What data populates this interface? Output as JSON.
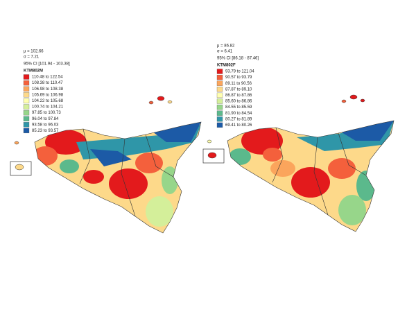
{
  "panels": [
    {
      "mean": "μ = 102.66",
      "sd": "σ =   7.21",
      "ci": "95% CI [101.94 - 103.38]",
      "legend_title": "KTM802M",
      "legend": [
        {
          "label": "110.48  to  122.54",
          "color": "#e31a1c"
        },
        {
          "label": "108.38  to  110.47",
          "color": "#f4603c"
        },
        {
          "label": "106.98  to  108.38",
          "color": "#fba55c"
        },
        {
          "label": "105.69  to  106.98",
          "color": "#fdd98a"
        },
        {
          "label": "104.22  to  105.68",
          "color": "#ffffb0"
        },
        {
          "label": "100.74  to  104.21",
          "color": "#d4ef9a"
        },
        {
          "label": "97.85  to  100.73",
          "color": "#97d68a"
        },
        {
          "label": "96.04  to  97.84",
          "color": "#5bb98c"
        },
        {
          "label": "93.58  to  96.03",
          "color": "#2f96a8"
        },
        {
          "label": "85.23  to  93.57",
          "color": "#1c5aa6"
        }
      ]
    },
    {
      "mean": "μ = 86.82",
      "sd": "σ =   6.41",
      "ci": "95% CI [86.18 - 87.46]",
      "legend_title": "KTM802F",
      "legend": [
        {
          "label": "93.79  to  121.04",
          "color": "#e31a1c"
        },
        {
          "label": "90.57  to  93.79",
          "color": "#f4603c"
        },
        {
          "label": "89.11  to  90.56",
          "color": "#fba55c"
        },
        {
          "label": "87.87  to  89.10",
          "color": "#fdd98a"
        },
        {
          "label": "86.87  to  87.86",
          "color": "#ffffb0"
        },
        {
          "label": "85.60  to  86.86",
          "color": "#d4ef9a"
        },
        {
          "label": "84.55  to  85.59",
          "color": "#97d68a"
        },
        {
          "label": "81.90  to  84.54",
          "color": "#5bb98c"
        },
        {
          "label": "80.27  to  81.89",
          "color": "#2f96a8"
        },
        {
          "label": "69.41  to  80.26",
          "color": "#1c5aa6"
        }
      ]
    }
  ]
}
